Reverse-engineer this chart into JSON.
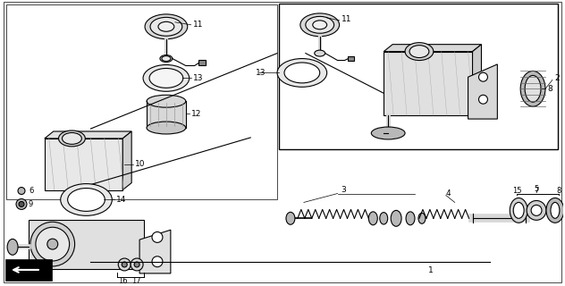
{
  "bg_color": "#ffffff",
  "line_color": "#000000",
  "gray_light": "#d8d8d8",
  "gray_mid": "#b8b8b8",
  "gray_dark": "#888888"
}
